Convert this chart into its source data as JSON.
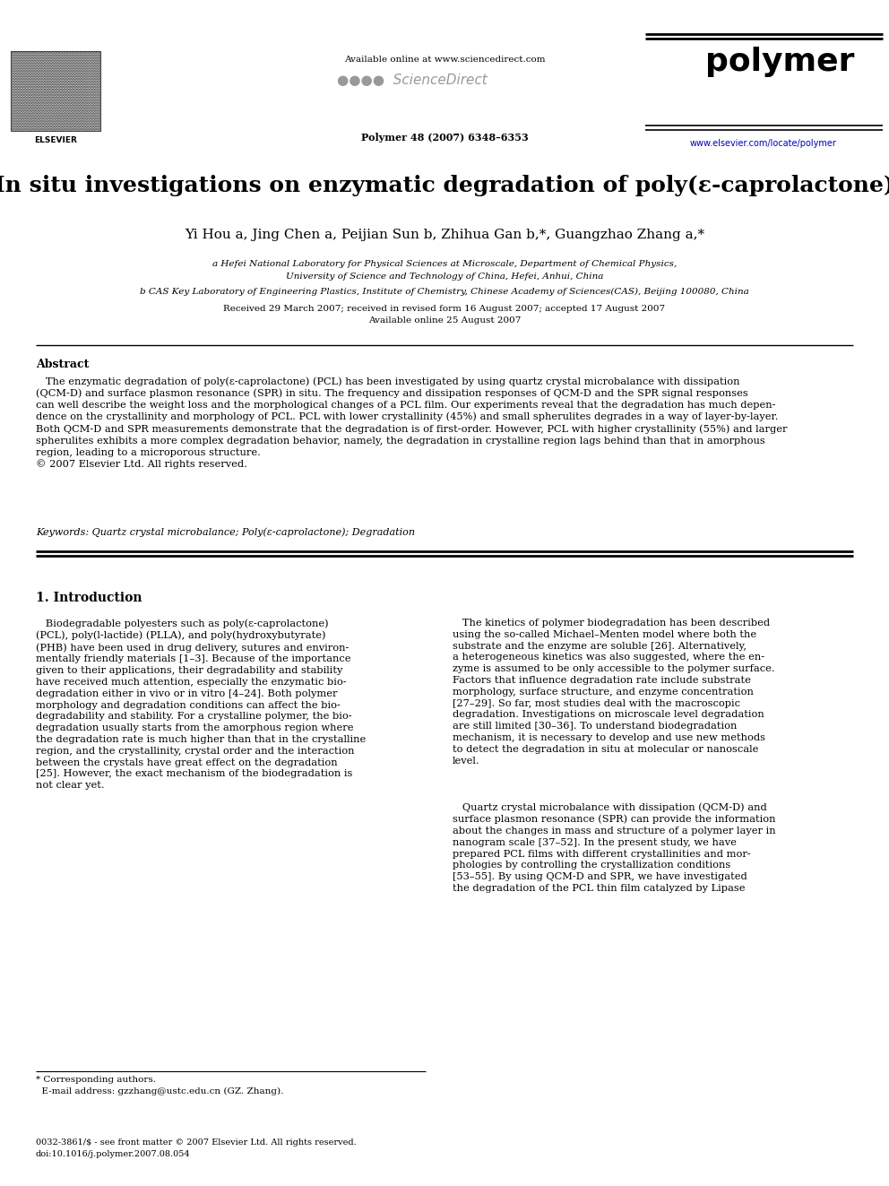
{
  "bg_color": "#ffffff",
  "page_width": 9.92,
  "page_height": 13.23,
  "dpi": 100,
  "header": {
    "available_online": "Available online at www.sciencedirect.com",
    "journal_info": "Polymer 48 (2007) 6348–6353",
    "journal_name": "polymer",
    "website": "www.elsevier.com/locate/polymer"
  },
  "title": "In situ investigations on enzymatic degradation of poly(ε-caprolactone)",
  "authors": "Yi Hou a, Jing Chen a, Peijian Sun b, Zhihua Gan b,*, Guangzhao Zhang a,*",
  "affil_a": "a Hefei National Laboratory for Physical Sciences at Microscale, Department of Chemical Physics,",
  "affil_a2": "University of Science and Technology of China, Hefei, Anhui, China",
  "affil_b": "b CAS Key Laboratory of Engineering Plastics, Institute of Chemistry, Chinese Academy of Sciences(CAS), Beijing 100080, China",
  "dates1": "Received 29 March 2007; received in revised form 16 August 2007; accepted 17 August 2007",
  "dates2": "Available online 25 August 2007",
  "abstract_title": "Abstract",
  "abstract_indent": "   The enzymatic degradation of poly(ε-caprolactone) (PCL) has been investigated by using quartz crystal microbalance with dissipation\n(QCM-D) and surface plasmon resonance (SPR) in situ. The frequency and dissipation responses of QCM-D and the SPR signal responses\ncan well describe the weight loss and the morphological changes of a PCL film. Our experiments reveal that the degradation has much depen-\ndence on the crystallinity and morphology of PCL. PCL with lower crystallinity (45%) and small spherulites degrades in a way of layer-by-layer.\nBoth QCM-D and SPR measurements demonstrate that the degradation is of first-order. However, PCL with higher crystallinity (55%) and larger\nspherulites exhibits a more complex degradation behavior, namely, the degradation in crystalline region lags behind than that in amorphous\nregion, leading to a microporous structure.\n© 2007 Elsevier Ltd. All rights reserved.",
  "keywords": "Keywords: Quartz crystal microbalance; Poly(ε-caprolactone); Degradation",
  "section1_title": "1. Introduction",
  "section1_col1_para1": "   Biodegradable polyesters such as poly(ε-caprolactone)\n(PCL), poly(l-lactide) (PLLA), and poly(hydroxybutyrate)\n(PHB) have been used in drug delivery, sutures and environ-\nmentally friendly materials [1–3]. Because of the importance\ngiven to their applications, their degradability and stability\nhave received much attention, especially the enzymatic bio-\ndegradation either in vivo or in vitro [4–24]. Both polymer\nmorphology and degradation conditions can affect the bio-\ndegradability and stability. For a crystalline polymer, the bio-\ndegradation usually starts from the amorphous region where\nthe degradation rate is much higher than that in the crystalline\nregion, and the crystallinity, crystal order and the interaction\nbetween the crystals have great effect on the degradation\n[25]. However, the exact mechanism of the biodegradation is\nnot clear yet.",
  "section1_col2_para1": "   The kinetics of polymer biodegradation has been described\nusing the so-called Michael–Menten model where both the\nsubstrate and the enzyme are soluble [26]. Alternatively,\na heterogeneous kinetics was also suggested, where the en-\nzyme is assumed to be only accessible to the polymer surface.\nFactors that influence degradation rate include substrate\nmorphology, surface structure, and enzyme concentration\n[27–29]. So far, most studies deal with the macroscopic\ndegradation. Investigations on microscale level degradation\nare still limited [30–36]. To understand biodegradation\nmechanism, it is necessary to develop and use new methods\nto detect the degradation in situ at molecular or nanoscale\nlevel.",
  "section1_col2_para2": "   Quartz crystal microbalance with dissipation (QCM-D) and\nsurface plasmon resonance (SPR) can provide the information\nabout the changes in mass and structure of a polymer layer in\nnanogram scale [37–52]. In the present study, we have\nprepared PCL films with different crystallinities and mor-\nphologies by controlling the crystallization conditions\n[53–55]. By using QCM-D and SPR, we have investigated\nthe degradation of the PCL thin film catalyzed by Lipase",
  "footer_star": "* Corresponding authors.",
  "footer_email": "  E-mail address: gzzhang@ustc.edu.cn (GZ. Zhang).",
  "footer_copy": "0032-3861/$ - see front matter © 2007 Elsevier Ltd. All rights reserved.",
  "footer_doi": "doi:10.1016/j.polymer.2007.08.054"
}
